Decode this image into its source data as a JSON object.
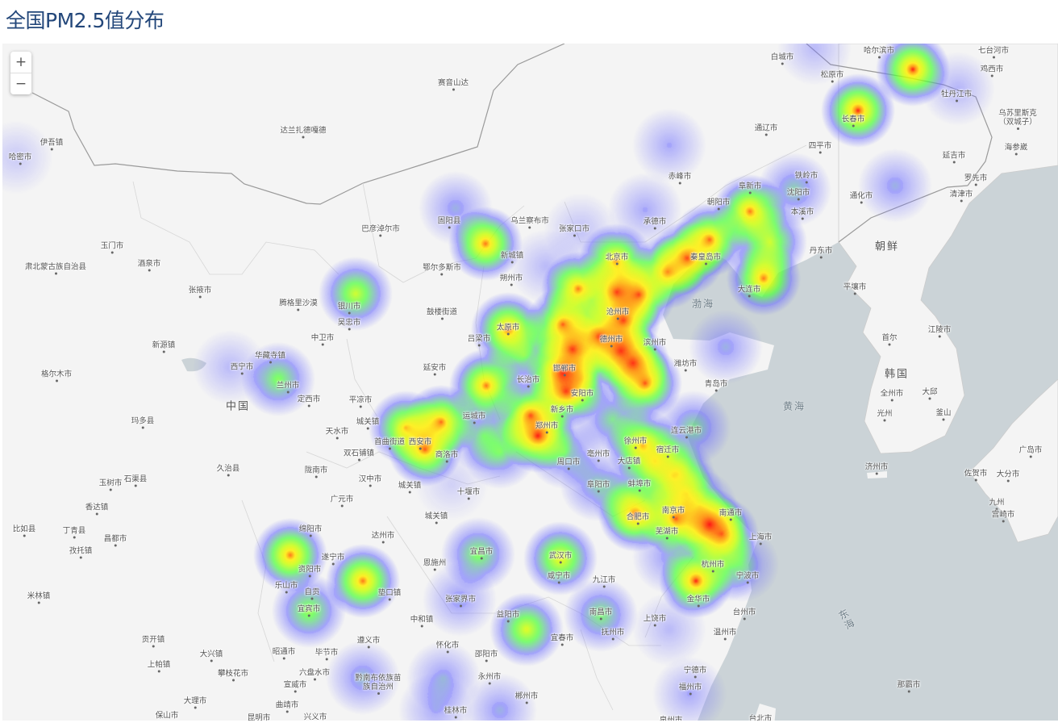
{
  "title": "全国PM2.5值分布",
  "zoom_controls": {
    "zoom_in": "+",
    "zoom_out": "−"
  },
  "map": {
    "colors": {
      "land": "#f4f4f4",
      "sea": "#cbd3d7",
      "border": "#9a9a9a"
    },
    "heat_gradient": {
      "0.25": "#7070ff",
      "0.5": "#4cff3c",
      "0.7": "#c8ff00",
      "0.82": "#ffee00",
      "0.92": "#ff8800",
      "1.0": "#ff0000"
    },
    "region_labels": [
      "中国",
      "朝鲜",
      "韩国",
      "渤海",
      "黄海",
      "东海"
    ],
    "labels": [
      "哈尔滨市",
      "七台河市",
      "松原市",
      "鸡西市",
      "白城市",
      "牡丹江市",
      "长春市",
      "乌苏里斯克（双城子）",
      "通辽市",
      "四平市",
      "海参崴",
      "延吉市",
      "赤峰市",
      "铁岭市",
      "阜新市",
      "沈阳市",
      "罗先市",
      "清津市",
      "通化市",
      "本溪市",
      "朝阳市",
      "承德市",
      "乌兰察布市",
      "张家口市",
      "巴彦淖尔市",
      "固阳县",
      "丹东市",
      "秦皇岛市",
      "鄂尔多斯市",
      "新城镇",
      "北京市",
      "朔州市",
      "平壤市",
      "大连市",
      "腾格里沙漠",
      "银川市",
      "吴忠市",
      "中卫市",
      "鼓楼街道",
      "首尔",
      "江陵市",
      "太原市",
      "吕梁市",
      "沧州市",
      "德州市",
      "滨州市",
      "潍坊市",
      "青岛市",
      "新源镇",
      "华藏寺镇",
      "西宁市",
      "格尔木市",
      "兰州市",
      "延安市",
      "长治市",
      "全州市",
      "大邱",
      "定西市",
      "平凉市",
      "光州",
      "釜山",
      "玛多县",
      "天水市",
      "城关镇",
      "运城市",
      "新乡市",
      "郑州市",
      "邯郸市",
      "安阳市",
      "首曲街道",
      "西安市",
      "商洛市",
      "双石铺镇",
      "徐州市",
      "连云港市",
      "宿迁市",
      "济州市",
      "广岛市",
      "久治县",
      "陇南市",
      "汉中市",
      "城关镇",
      "十堰市",
      "周口市",
      "亳州市",
      "大店镇",
      "阜阳市",
      "蚌埠市",
      "佐贺市",
      "大分市",
      "玉树市",
      "石渠县",
      "广元市",
      "城关镇",
      "香达镇",
      "南京市",
      "南通市",
      "合肥市",
      "芜湖市",
      "上海市",
      "九州",
      "宫崎市",
      "比如县",
      "丁青县",
      "昌都市",
      "达州市",
      "绵阳市",
      "孜托镇",
      "遂宁市",
      "宜昌市",
      "武汉市",
      "恩施州",
      "杭州市",
      "资阳市",
      "乐山市",
      "垫口镇",
      "咸宁市",
      "九江市",
      "宁波市",
      "自贡",
      "米林镇",
      "金华市",
      "宜宾市",
      "张家界市",
      "南昌市",
      "益阳市",
      "中和镇",
      "上饶市",
      "台州市",
      "抚州市",
      "遵义市",
      "怀化市",
      "宜春市",
      "温州市",
      "邵阳市",
      "贡开镇",
      "大兴镇",
      "昭通市",
      "毕节市",
      "上帕镇",
      "攀枝花市",
      "六盘水市",
      "永州市",
      "宁德市",
      "宣威市",
      "黔南布依族苗族自治州",
      "福州市",
      "郴州市",
      "大理市",
      "曲靖市",
      "保山市",
      "昆明市",
      "兴义市",
      "桂林市",
      "台北市",
      "那霸市",
      "伊吾镇",
      "哈密市",
      "达兰扎德嘎德",
      "赛音山达",
      "玉门市",
      "肃北蒙古族自治县",
      "酒泉市",
      "张掖市",
      "泉州市"
    ],
    "heat_intensity": [
      1.0,
      1.0,
      0.22,
      0.4,
      0.95,
      0.7,
      0.95,
      0.95,
      0.95,
      0.9,
      0.9,
      0.95,
      0.95,
      0.95,
      0.95,
      0.95,
      0.95,
      0.95,
      0.95,
      0.95,
      0.95,
      0.95,
      0.95,
      0.95,
      1.0,
      0.95,
      0.95,
      0.95,
      0.85,
      0.95,
      0.95,
      0.85,
      0.6,
      0.5,
      0.55,
      0.45,
      0.55,
      0.95,
      0.95,
      0.9,
      1.0,
      1.0,
      0.8,
      0.95,
      0.95,
      0.7,
      0.55,
      0.75,
      0.55,
      0.6,
      0.5,
      0.2,
      0.3,
      0.25,
      0.18,
      0.15,
      0.3,
      0.25,
      0.35,
      0.3,
      0.25,
      0.3,
      0.2,
      0.3,
      0.3,
      0.35,
      0.3,
      0.25,
      0.45,
      0.45,
      0.4,
      0.4,
      0.35,
      0.2,
      0.2,
      0.12,
      0.5,
      0.5,
      0.45,
      0.45,
      0.4
    ]
  }
}
